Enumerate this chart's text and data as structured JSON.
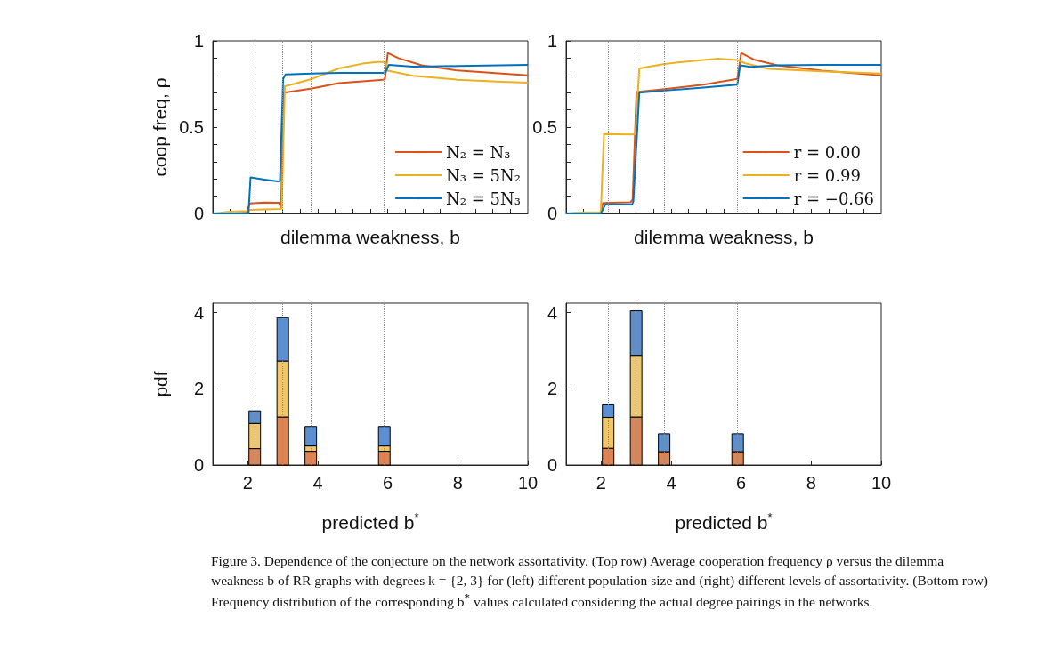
{
  "chart_data": [
    {
      "type": "line",
      "xlabel": "dilemma weakness, b",
      "ylabel": "coop freq, ρ",
      "xlim": [
        1,
        10
      ],
      "ylim": [
        0,
        1
      ],
      "xticks": [
        {
          "value": 1.5,
          "label": null
        },
        {
          "value": 2,
          "label": null
        },
        {
          "value": 2.5,
          "label": null
        },
        {
          "value": 3,
          "label": null
        },
        {
          "value": 3.5,
          "label": null
        },
        {
          "value": 4,
          "label": null
        },
        {
          "value": 4.5,
          "label": null
        },
        {
          "value": 5,
          "label": null
        },
        {
          "value": 5.5,
          "label": null
        },
        {
          "value": 6,
          "label": null
        },
        {
          "value": 6.5,
          "label": null
        },
        {
          "value": 7,
          "label": null
        },
        {
          "value": 7.5,
          "label": null
        },
        {
          "value": 8,
          "label": null
        },
        {
          "value": 8.5,
          "label": null
        },
        {
          "value": 9,
          "label": null
        },
        {
          "value": 9.5,
          "label": null
        }
      ],
      "yticks": [
        0,
        {
          "value": 0.1,
          "label": null
        },
        {
          "value": 0.2,
          "label": null
        },
        {
          "value": 0.3,
          "label": null
        },
        {
          "value": 0.4,
          "label": null
        },
        0.5,
        {
          "value": 0.6,
          "label": null
        },
        {
          "value": 0.7,
          "label": null
        },
        {
          "value": 0.8,
          "label": null
        },
        {
          "value": 0.9,
          "label": null
        },
        1
      ],
      "tick_labels": "y",
      "legend": "bottom right",
      "marker": "none",
      "ref_lines": [
        {
          "axis": "x",
          "value": 2.2,
          "color": "#8c8c8c",
          "line_style": "dotted"
        },
        {
          "axis": "x",
          "value": 3.0,
          "color": "#8c8c8c",
          "line_style": "dotted"
        },
        {
          "axis": "x",
          "value": 3.8,
          "color": "#8c8c8c",
          "line_style": "dotted"
        },
        {
          "axis": "x",
          "value": 5.9,
          "color": "#8c8c8c",
          "line_style": "dotted"
        }
      ],
      "series": [
        {
          "name": "N₂ = N₃",
          "color": "#d95319",
          "x": [
            1,
            1.51,
            1.97,
            2.06,
            2.48,
            2.89,
            2.95,
            3.03,
            3.84,
            4.6,
            5.11,
            5.87,
            5.92,
            6.0,
            6.3,
            6.97,
            7.99,
            9.26,
            10
          ],
          "values": [
            0,
            0,
            0.005,
            0.058,
            0.063,
            0.062,
            0.03,
            0.7,
            0.724,
            0.755,
            0.763,
            0.775,
            0.78,
            0.93,
            0.9,
            0.858,
            0.828,
            0.81,
            0.8
          ]
        },
        {
          "name": "N₃ = 5N₂",
          "color": "#edb120",
          "x": [
            1,
            1.51,
            2.02,
            2.06,
            2.91,
            2.97,
            3.06,
            3.33,
            3.84,
            4.6,
            5.28,
            5.7,
            5.94,
            6.0,
            6.72,
            7.99,
            9.26,
            10
          ],
          "values": [
            0,
            0.01,
            0.014,
            0.02,
            0.026,
            0.03,
            0.737,
            0.751,
            0.78,
            0.84,
            0.868,
            0.878,
            0.878,
            0.827,
            0.798,
            0.775,
            0.763,
            0.758
          ]
        },
        {
          "name": "N₂ = 5N₃",
          "color": "#0072bd",
          "x": [
            1,
            2.02,
            2.08,
            2.48,
            2.86,
            2.92,
            3.01,
            3.08,
            3.84,
            4.6,
            5.87,
            5.94,
            6.03,
            6.72,
            7.99,
            10
          ],
          "values": [
            0,
            0,
            0.209,
            0.196,
            0.185,
            0.188,
            0.78,
            0.806,
            0.811,
            0.815,
            0.815,
            0.82,
            0.861,
            0.851,
            0.854,
            0.861
          ]
        }
      ]
    },
    {
      "type": "line",
      "xlabel": "dilemma weakness, b",
      "xlim": [
        1,
        10
      ],
      "ylim": [
        0,
        1
      ],
      "xticks": [
        {
          "value": 1.5,
          "label": null
        },
        {
          "value": 2,
          "label": null
        },
        {
          "value": 2.5,
          "label": null
        },
        {
          "value": 3,
          "label": null
        },
        {
          "value": 3.5,
          "label": null
        },
        {
          "value": 4,
          "label": null
        },
        {
          "value": 4.5,
          "label": null
        },
        {
          "value": 5,
          "label": null
        },
        {
          "value": 5.5,
          "label": null
        },
        {
          "value": 6,
          "label": null
        },
        {
          "value": 6.5,
          "label": null
        },
        {
          "value": 7,
          "label": null
        },
        {
          "value": 7.5,
          "label": null
        },
        {
          "value": 8,
          "label": null
        },
        {
          "value": 8.5,
          "label": null
        },
        {
          "value": 9,
          "label": null
        },
        {
          "value": 9.5,
          "label": null
        }
      ],
      "yticks": [
        0,
        {
          "value": 0.1,
          "label": null
        },
        {
          "value": 0.2,
          "label": null
        },
        {
          "value": 0.3,
          "label": null
        },
        {
          "value": 0.4,
          "label": null
        },
        0.5,
        {
          "value": 0.6,
          "label": null
        },
        {
          "value": 0.7,
          "label": null
        },
        {
          "value": 0.8,
          "label": null
        },
        {
          "value": 0.9,
          "label": null
        },
        1
      ],
      "tick_labels": "y",
      "legend": "bottom right",
      "marker": "none",
      "ref_lines": [
        {
          "axis": "x",
          "value": 2.2,
          "color": "#8c8c8c",
          "line_style": "dotted"
        },
        {
          "axis": "x",
          "value": 3.0,
          "color": "#8c8c8c",
          "line_style": "dotted"
        },
        {
          "axis": "x",
          "value": 3.8,
          "color": "#8c8c8c",
          "line_style": "dotted"
        },
        {
          "axis": "x",
          "value": 5.9,
          "color": "#8c8c8c",
          "line_style": "dotted"
        }
      ],
      "series": [
        {
          "name": "r = 0.00",
          "color": "#d95319",
          "x": [
            1,
            1.53,
            1.99,
            2.05,
            2.84,
            2.9,
            3.01,
            3.81,
            4.92,
            5.89,
            6.0,
            6.36,
            7.03,
            8.31,
            10
          ],
          "values": [
            0,
            0.003,
            0.005,
            0.06,
            0.065,
            0.08,
            0.703,
            0.72,
            0.746,
            0.78,
            0.93,
            0.892,
            0.858,
            0.827,
            0.8
          ]
        },
        {
          "name": "r = 0.99",
          "color": "#edb120",
          "x": [
            1,
            1.53,
            1.99,
            2.08,
            2.88,
            2.98,
            3.09,
            3.81,
            4.58,
            5.34,
            5.89,
            6.1,
            6.78,
            8.31,
            10
          ],
          "values": [
            0,
            0.007,
            0.007,
            0.46,
            0.458,
            0.46,
            0.84,
            0.866,
            0.883,
            0.897,
            0.889,
            0.871,
            0.837,
            0.823,
            0.81
          ]
        },
        {
          "name": "r = −0.66",
          "color": "#0072bd",
          "x": [
            1,
            1.99,
            2.12,
            2.88,
            2.92,
            3.09,
            3.81,
            4.92,
            5.89,
            5.97,
            6.27,
            7.03,
            8.31,
            10
          ],
          "values": [
            0,
            0,
            0.051,
            0.051,
            0.07,
            0.7,
            0.712,
            0.729,
            0.746,
            0.858,
            0.849,
            0.858,
            0.861,
            0.861
          ]
        }
      ]
    },
    {
      "type": "bar",
      "stacked": true,
      "xlabel": "predicted b$^{*}$",
      "ylabel": "pdf",
      "xlim": [
        1,
        10
      ],
      "ylim": [
        0,
        4.25
      ],
      "xticks": [
        2,
        4,
        6,
        8,
        10
      ],
      "yticks": [
        0,
        2,
        4
      ],
      "ref_lines": [
        {
          "axis": "x",
          "value": 2.2,
          "color": "#8c8c8c",
          "line_style": "dotted"
        },
        {
          "axis": "x",
          "value": 3.0,
          "color": "#8c8c8c",
          "line_style": "dotted"
        },
        {
          "axis": "x",
          "value": 3.8,
          "color": "#8c8c8c",
          "line_style": "dotted"
        },
        {
          "axis": "x",
          "value": 5.9,
          "color": "#8c8c8c",
          "line_style": "dotted"
        }
      ],
      "series": [
        {
          "color": "#dc8454",
          "x": [
            2.2,
            3.0,
            3.8,
            5.9
          ],
          "values": [
            0.43,
            1.26,
            0.36,
            0.36
          ]
        },
        {
          "color": "#f0c66a",
          "x": [
            2.2,
            3.0,
            3.8,
            5.9
          ],
          "values": [
            0.66,
            1.47,
            0.14,
            0.14
          ]
        },
        {
          "color": "#5b8fd0",
          "x": [
            2.2,
            3.0,
            3.8,
            5.9
          ],
          "values": [
            0.33,
            1.14,
            0.51,
            0.51
          ]
        }
      ]
    },
    {
      "type": "bar",
      "stacked": true,
      "xlabel": "predicted b$^{*}$",
      "xlim": [
        1,
        10
      ],
      "ylim": [
        0,
        4.25
      ],
      "xticks": [
        2,
        4,
        6,
        8,
        10
      ],
      "yticks": [
        0,
        2,
        4
      ],
      "ref_lines": [
        {
          "axis": "x",
          "value": 2.2,
          "color": "#8c8c8c",
          "line_style": "dotted"
        },
        {
          "axis": "x",
          "value": 3.0,
          "color": "#8c8c8c",
          "line_style": "dotted"
        },
        {
          "axis": "x",
          "value": 3.8,
          "color": "#8c8c8c",
          "line_style": "dotted"
        },
        {
          "axis": "x",
          "value": 5.9,
          "color": "#8c8c8c",
          "line_style": "dotted"
        }
      ],
      "series": [
        {
          "color": "#dc8454",
          "x": [
            2.2,
            3.0,
            3.8,
            5.9
          ],
          "values": [
            0.44,
            1.26,
            0.35,
            0.35
          ]
        },
        {
          "color": "#f0c66a",
          "x": [
            2.2,
            3.0,
            3.8,
            5.9
          ],
          "values": [
            0.81,
            1.62,
            0,
            0
          ]
        },
        {
          "color": "#5b8fd0",
          "x": [
            2.2,
            3.0,
            3.8,
            5.9
          ],
          "values": [
            0.35,
            1.17,
            0.47,
            0.47
          ]
        }
      ],
      "annotations": [
        "Figure 3. Dependence of the conjecture on the network assortativity. (Top row) Average cooperation frequency ρ versus the dilemma weakness b of RR graphs with degrees k = {2, 3} for (left) different population size and (right) different levels of assortativity. (Bottom row) Frequency distribution of the corresponding b$^{*}$ values calculated considering the actual degree pairings in the networks."
      ]
    }
  ]
}
